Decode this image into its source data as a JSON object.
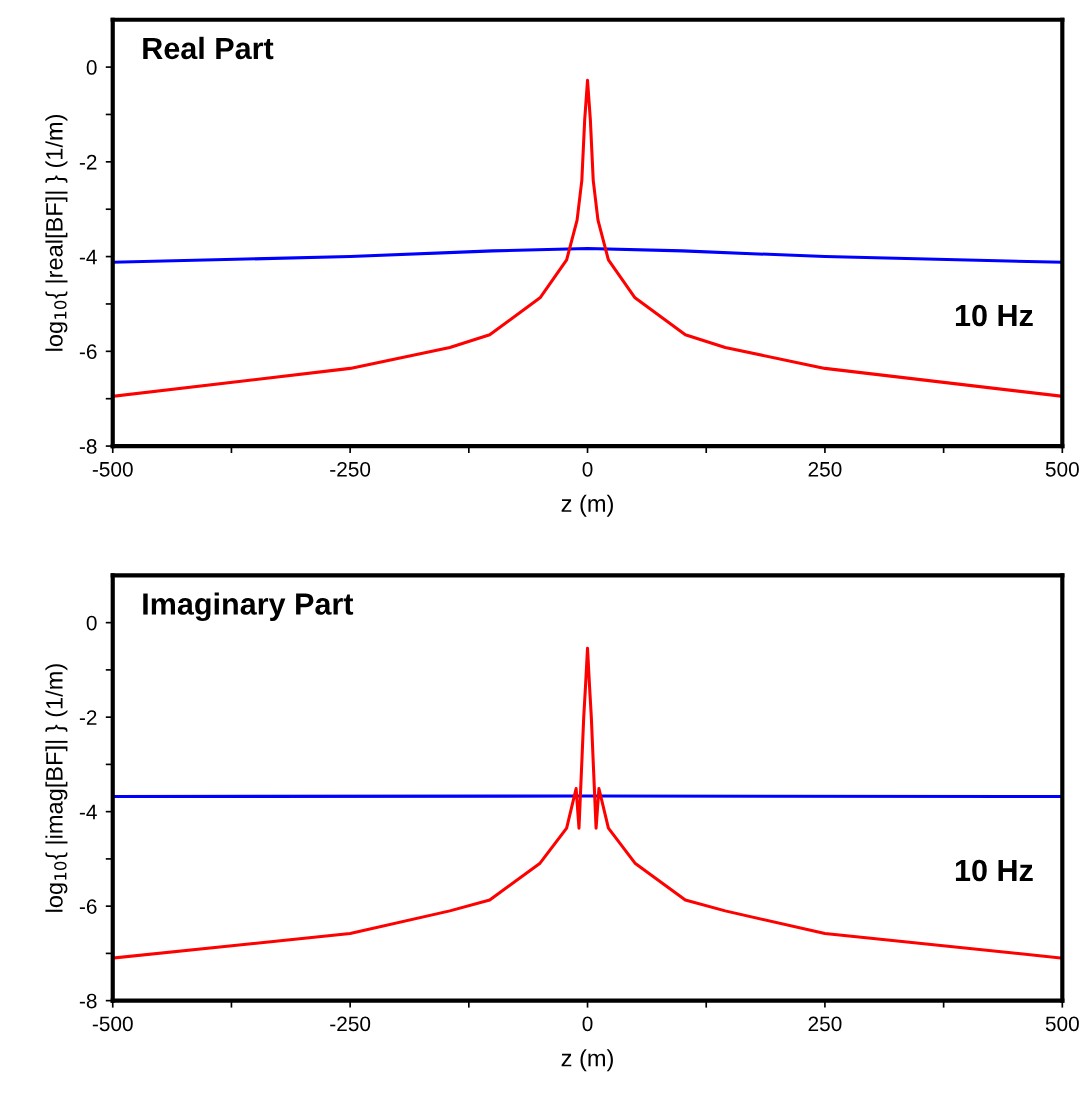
{
  "chart_data": [
    {
      "type": "line",
      "title": "Real Part",
      "xlabel": "z (m)",
      "ylabel": "log$_{10}${ |real[BF]| } (1/m)",
      "annotations": [
        "10 Hz"
      ],
      "xlim": [
        -500,
        500
      ],
      "ylim": [
        -8,
        1
      ],
      "xticks": [
        -500,
        {
          "value": -375,
          "label": null
        },
        -250,
        {
          "value": -125,
          "label": null
        },
        0,
        {
          "value": 125,
          "label": null
        },
        250,
        {
          "value": 375,
          "label": null
        },
        500
      ],
      "yticks": [
        -8,
        {
          "value": -7,
          "label": null
        },
        -6,
        {
          "value": -5,
          "label": null
        },
        -4,
        {
          "value": -3,
          "label": null
        },
        -2,
        {
          "value": -1,
          "label": null
        },
        0
      ],
      "series": [
        {
          "color": "#0000ff",
          "x": [
            -500,
            -250,
            -100,
            0,
            100,
            250,
            500
          ],
          "values": [
            -4.12,
            -4.0,
            -3.88,
            -3.83,
            -3.88,
            -4.0,
            -4.12
          ]
        },
        {
          "color": "#ff0000",
          "x": [
            -500,
            -250,
            -145,
            -103,
            -50,
            -22,
            -11,
            -6,
            -3,
            0,
            3,
            6,
            11,
            22,
            50,
            103,
            145,
            250,
            500
          ],
          "values": [
            -6.95,
            -6.36,
            -5.92,
            -5.65,
            -4.87,
            -4.07,
            -3.23,
            -2.39,
            -1.12,
            -0.28,
            -1.12,
            -2.39,
            -3.23,
            -4.07,
            -4.87,
            -5.65,
            -5.92,
            -6.36,
            -6.95
          ]
        }
      ]
    },
    {
      "type": "line",
      "title": "Imaginary Part",
      "xlabel": "z (m)",
      "ylabel": "log$_{10}${ |imag[BF]| } (1/m)",
      "annotations": [
        "10 Hz"
      ],
      "xlim": [
        -500,
        500
      ],
      "ylim": [
        -8,
        1
      ],
      "xticks": [
        -500,
        {
          "value": -375,
          "label": null
        },
        -250,
        {
          "value": -125,
          "label": null
        },
        0,
        {
          "value": 125,
          "label": null
        },
        250,
        {
          "value": 375,
          "label": null
        },
        500
      ],
      "yticks": [
        -8,
        {
          "value": -7,
          "label": null
        },
        -6,
        {
          "value": -5,
          "label": null
        },
        -4,
        {
          "value": -3,
          "label": null
        },
        -2,
        {
          "value": -1,
          "label": null
        },
        0
      ],
      "series": [
        {
          "color": "#0000ff",
          "x": [
            -500,
            0,
            500
          ],
          "values": [
            -3.68,
            -3.67,
            -3.68
          ]
        },
        {
          "color": "#ff0000",
          "x": [
            -500,
            -250,
            -145,
            -103,
            -50,
            -22,
            -12,
            -9,
            -6,
            -4,
            -2,
            0,
            2,
            4,
            6,
            9,
            12,
            22,
            50,
            103,
            145,
            250,
            500
          ],
          "values": [
            -7.1,
            -6.58,
            -6.1,
            -5.87,
            -5.09,
            -4.35,
            -3.51,
            -4.35,
            -2.95,
            -2.0,
            -1.3,
            -0.54,
            -1.3,
            -2.0,
            -2.95,
            -4.35,
            -3.51,
            -4.35,
            -5.09,
            -5.87,
            -6.1,
            -6.58,
            -7.1
          ]
        }
      ]
    }
  ]
}
